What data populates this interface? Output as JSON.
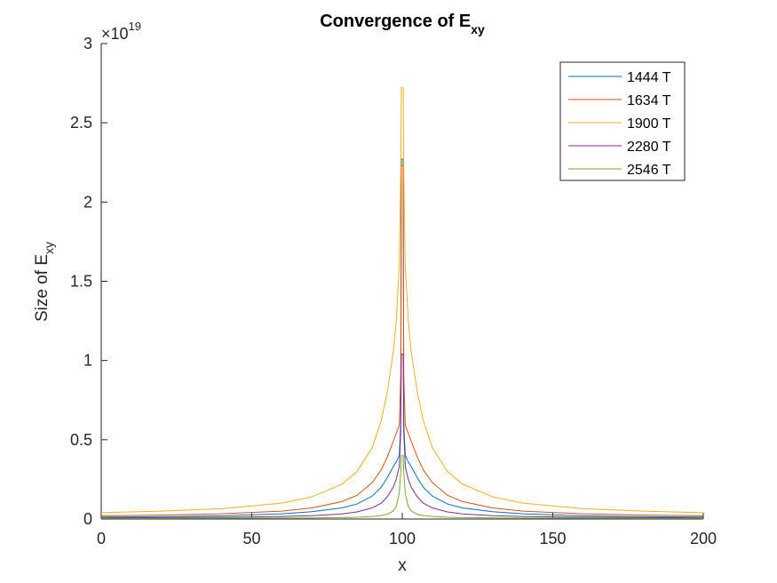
{
  "chart_data": {
    "type": "line",
    "title": "Convergence of E",
    "title_sub": "xy",
    "xlabel": "x",
    "ylabel": "Size of E",
    "ylabel_sub": "xy",
    "exponent_label": "×10",
    "exponent_power": "19",
    "xlim": [
      0,
      200
    ],
    "ylim": [
      0,
      3
    ],
    "y_scale": 1e+19,
    "xticks": [
      0,
      50,
      100,
      150,
      200
    ],
    "yticks": [
      0,
      0.5,
      1,
      1.5,
      2,
      2.5,
      3
    ],
    "ytick_labels": [
      "0",
      "0.5",
      "1",
      "1.5",
      "2",
      "2.5",
      "3"
    ],
    "grid": false,
    "legend_position": "top-right",
    "series": [
      {
        "name": "1444 T",
        "color": "#0072BD",
        "x": [
          0,
          20,
          40,
          60,
          70,
          80,
          85,
          90,
          93,
          95,
          97,
          98,
          99,
          99.5,
          99.7,
          100.3,
          100.5,
          101,
          102,
          103,
          105,
          107,
          110,
          115,
          120,
          130,
          140,
          160,
          180,
          200
        ],
        "y": [
          0.012,
          0.015,
          0.02,
          0.033,
          0.046,
          0.07,
          0.095,
          0.145,
          0.2,
          0.26,
          0.33,
          0.36,
          0.4,
          0.6,
          2.27,
          2.27,
          0.6,
          0.4,
          0.36,
          0.33,
          0.26,
          0.2,
          0.145,
          0.095,
          0.07,
          0.046,
          0.033,
          0.02,
          0.015,
          0.012
        ]
      },
      {
        "name": "1634 T",
        "color": "#D95319",
        "x": [
          0,
          20,
          40,
          60,
          70,
          80,
          85,
          90,
          93,
          95,
          97,
          98,
          99,
          99.5,
          99.7,
          100.3,
          100.5,
          101,
          102,
          103,
          105,
          107,
          110,
          115,
          120,
          130,
          140,
          160,
          180,
          200
        ],
        "y": [
          0.02,
          0.025,
          0.033,
          0.05,
          0.07,
          0.11,
          0.15,
          0.23,
          0.31,
          0.39,
          0.49,
          0.54,
          0.59,
          0.9,
          2.23,
          2.23,
          0.9,
          0.59,
          0.54,
          0.49,
          0.39,
          0.31,
          0.23,
          0.15,
          0.11,
          0.07,
          0.05,
          0.033,
          0.025,
          0.02
        ]
      },
      {
        "name": "1900 T",
        "color": "#EDB120",
        "x": [
          0,
          20,
          40,
          60,
          70,
          80,
          85,
          90,
          93,
          95,
          97,
          98,
          99,
          99.5,
          99.7,
          100.3,
          100.5,
          101,
          102,
          103,
          105,
          107,
          110,
          115,
          120,
          130,
          140,
          160,
          180,
          200
        ],
        "y": [
          0.04,
          0.05,
          0.065,
          0.1,
          0.14,
          0.22,
          0.3,
          0.45,
          0.62,
          0.8,
          1.05,
          1.25,
          1.6,
          2.2,
          2.72,
          2.72,
          2.2,
          1.6,
          1.25,
          1.05,
          0.8,
          0.62,
          0.45,
          0.3,
          0.22,
          0.14,
          0.1,
          0.065,
          0.05,
          0.04
        ]
      },
      {
        "name": "2280 T",
        "color": "#7E2F8E",
        "x": [
          0,
          20,
          40,
          60,
          70,
          80,
          85,
          90,
          93,
          95,
          97,
          98,
          99,
          99.5,
          99.7,
          100.3,
          100.5,
          101,
          102,
          103,
          105,
          107,
          110,
          115,
          120,
          130,
          140,
          160,
          180,
          200
        ],
        "y": [
          0.008,
          0.009,
          0.011,
          0.016,
          0.021,
          0.032,
          0.045,
          0.07,
          0.1,
          0.14,
          0.2,
          0.25,
          0.33,
          0.55,
          1.04,
          1.04,
          0.55,
          0.33,
          0.25,
          0.2,
          0.14,
          0.1,
          0.07,
          0.045,
          0.032,
          0.021,
          0.016,
          0.011,
          0.009,
          0.008
        ]
      },
      {
        "name": "2546 T",
        "color": "#77AC30",
        "x": [
          0,
          20,
          40,
          60,
          70,
          80,
          85,
          90,
          93,
          95,
          97,
          98,
          99,
          99.5,
          99.7,
          100.3,
          100.5,
          101,
          102,
          103,
          105,
          107,
          110,
          115,
          120,
          130,
          140,
          160,
          180,
          200
        ],
        "y": [
          0.004,
          0.004,
          0.005,
          0.006,
          0.007,
          0.009,
          0.011,
          0.016,
          0.022,
          0.03,
          0.05,
          0.08,
          0.16,
          0.3,
          0.4,
          0.4,
          0.3,
          0.16,
          0.08,
          0.05,
          0.03,
          0.022,
          0.016,
          0.011,
          0.009,
          0.007,
          0.006,
          0.005,
          0.004,
          0.004
        ]
      }
    ]
  }
}
